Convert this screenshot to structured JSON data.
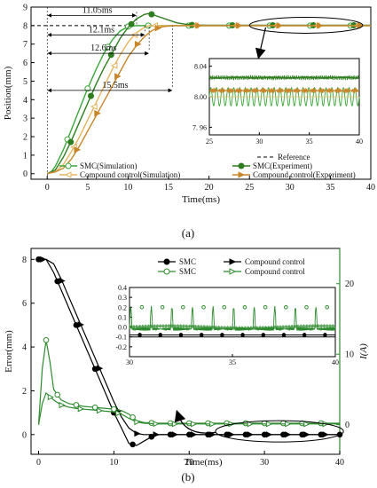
{
  "chart_data": [
    {
      "panel": "(a)",
      "type": "line",
      "xlabel": "Time(ms)",
      "ylabel": "Position(mm)",
      "xlim": [
        -2,
        40
      ],
      "ylim": [
        -0.3,
        9
      ],
      "xticks": [
        0,
        5,
        10,
        15,
        20,
        25,
        30,
        35,
        40
      ],
      "yticks": [
        0,
        1,
        2,
        3,
        4,
        5,
        6,
        7,
        8,
        9
      ],
      "grid": false,
      "legend_position": "bottom-right",
      "colors": {
        "reference": "#000000",
        "smc_sim": "#3aa63a",
        "smc_exp": "#2e7d1f",
        "comp_sim": "#e6b45e",
        "comp_exp": "#c8862a"
      },
      "reference": {
        "name": "Reference",
        "x": [
          -2,
          40
        ],
        "y": [
          8,
          8
        ]
      },
      "series": [
        {
          "name": "SMC(Simulation)",
          "key": "smc_sim",
          "marker": "open-circle",
          "x": [
            0,
            0.5,
            1,
            2,
            3,
            4,
            5,
            6,
            7,
            8,
            9,
            10,
            11,
            11.05,
            13,
            16,
            20,
            25,
            30,
            35,
            40
          ],
          "y": [
            0,
            0.1,
            0.4,
            1.3,
            2.4,
            3.5,
            4.6,
            5.6,
            6.5,
            7.2,
            7.7,
            7.95,
            8.0,
            8.0,
            8.0,
            8.0,
            8.0,
            8.0,
            8.0,
            8.0,
            8.0
          ]
        },
        {
          "name": "SMC(Experiment)",
          "key": "smc_exp",
          "marker": "filled-circle",
          "x": [
            0,
            1,
            2,
            3,
            4,
            5,
            6,
            7,
            8,
            9,
            10,
            11,
            12,
            12.5,
            13,
            14,
            15,
            16,
            17,
            18,
            20,
            25,
            30,
            35,
            40
          ],
          "y": [
            0,
            0.2,
            0.9,
            1.8,
            2.8,
            3.8,
            4.8,
            5.7,
            6.5,
            7.3,
            7.9,
            8.35,
            8.6,
            8.65,
            8.6,
            8.45,
            8.3,
            8.15,
            8.08,
            8.03,
            8.02,
            8.02,
            8.02,
            8.02,
            8.02
          ]
        },
        {
          "name": "Compound control(Simulation)",
          "key": "comp_sim",
          "marker": "open-triangle-left",
          "x": [
            0,
            1,
            2,
            3,
            4,
            5,
            6,
            7,
            8,
            9,
            10,
            11,
            12,
            12.6,
            14,
            16,
            20,
            25,
            30,
            35,
            40
          ],
          "y": [
            0,
            0.1,
            0.5,
            1.2,
            2.0,
            2.9,
            3.8,
            4.7,
            5.6,
            6.4,
            7.1,
            7.6,
            7.9,
            8.0,
            8.0,
            8.0,
            8.0,
            8.0,
            8.0,
            8.0,
            8.0
          ]
        },
        {
          "name": "Compound control(Experiment)",
          "key": "comp_exp",
          "marker": "filled-triangle-right",
          "x": [
            0,
            1,
            2,
            3,
            4,
            5,
            6,
            7,
            8,
            9,
            10,
            11,
            12,
            13,
            14,
            15,
            15.5,
            17,
            20,
            25,
            30,
            35,
            40
          ],
          "y": [
            0,
            0.1,
            0.3,
            0.8,
            1.5,
            2.3,
            3.1,
            3.9,
            4.7,
            5.5,
            6.3,
            6.9,
            7.4,
            7.75,
            7.92,
            7.98,
            8.0,
            8.0,
            8.0,
            8.0,
            8.0,
            8.0,
            8.0
          ]
        }
      ],
      "annotations": [
        {
          "text": "11.05ms",
          "x_end": 11.05,
          "y": 8.55
        },
        {
          "text": "12.1ms",
          "x_end": 12.1,
          "y": 7.5
        },
        {
          "text": "12.6ms",
          "x_end": 12.6,
          "y": 6.5
        },
        {
          "text": "15.5ms",
          "x_end": 15.5,
          "y": 4.5
        }
      ],
      "inset": {
        "xlim": [
          25,
          40
        ],
        "ylim": [
          7.95,
          8.05
        ],
        "xticks": [
          25,
          30,
          35,
          40
        ],
        "yticks": [
          7.96,
          8.0,
          8.04
        ],
        "ytick_labels": [
          "7. 96",
          "8.00",
          "8.04"
        ],
        "smc_exp_level": 8.025,
        "comp_exp_level": 8.008,
        "smc_sim_amplitude": 0.012,
        "smc_sim_cycles": 26
      }
    },
    {
      "panel": "(b)",
      "type": "line",
      "xlabel": "Time(ms)",
      "ylabel": "Error(mm)",
      "y2label": "I(A)",
      "xlim": [
        -1,
        40
      ],
      "ylim": [
        -0.9,
        8.5
      ],
      "y2lim": [
        -4.2,
        25
      ],
      "xticks": [
        0,
        10,
        20,
        30,
        40
      ],
      "yticks": [
        0,
        2,
        4,
        6,
        8
      ],
      "y2ticks": [
        0,
        10,
        20
      ],
      "grid": false,
      "legend_position": "top-right",
      "colors": {
        "error": "#000000",
        "current": "#2e8b2e"
      },
      "series": [
        {
          "name": "SMC",
          "key": "err_smc",
          "axis": "left",
          "marker": "filled-circle",
          "x": [
            0,
            1,
            2,
            3,
            4,
            5,
            6,
            7,
            8,
            9,
            10,
            11,
            12,
            13,
            14,
            15,
            16,
            18,
            20,
            25,
            30,
            35,
            40
          ],
          "y": [
            8.0,
            8.0,
            7.4,
            6.6,
            5.8,
            5.0,
            4.2,
            3.4,
            2.6,
            1.8,
            1.0,
            0.3,
            -0.4,
            -0.5,
            -0.3,
            -0.1,
            0.0,
            0.0,
            0.0,
            0.0,
            0.0,
            0.0,
            0.0
          ]
        },
        {
          "name": "Compound control",
          "key": "err_comp",
          "axis": "left",
          "marker": "filled-triangle-right",
          "x": [
            0,
            1,
            2,
            3,
            4,
            5,
            6,
            7,
            8,
            9,
            10,
            11,
            12,
            13,
            14,
            15,
            16,
            18,
            20,
            25,
            30,
            35,
            40
          ],
          "y": [
            8.0,
            8.0,
            7.8,
            7.1,
            6.3,
            5.5,
            4.7,
            3.9,
            3.1,
            2.3,
            1.5,
            0.8,
            0.3,
            0.05,
            0.0,
            0.0,
            0.0,
            0.0,
            0.0,
            0.0,
            0.0,
            0.0,
            0.0
          ]
        },
        {
          "name": "SMC",
          "key": "cur_smc",
          "axis": "right",
          "marker": "open-circle",
          "x": [
            0,
            0.5,
            1,
            1.5,
            2,
            3,
            4,
            5,
            6,
            7,
            8,
            9,
            10,
            11,
            12,
            13,
            14,
            16,
            20,
            25,
            30,
            35,
            40
          ],
          "y": [
            0,
            8,
            12,
            9,
            5,
            3.5,
            3.0,
            2.8,
            2.6,
            2.5,
            2.4,
            2.3,
            2.2,
            2.0,
            1.5,
            0.6,
            0.3,
            0.2,
            0.2,
            0.2,
            0.2,
            0.2,
            0.2
          ]
        },
        {
          "name": "Compound control",
          "key": "cur_comp",
          "axis": "right",
          "marker": "open-triangle-right",
          "x": [
            0,
            0.5,
            1,
            1.5,
            2,
            3,
            4,
            5,
            6,
            7,
            8,
            9,
            10,
            11,
            12,
            13,
            14,
            16,
            20,
            25,
            30,
            35,
            40
          ],
          "y": [
            0,
            3,
            4.5,
            4.0,
            3.5,
            2.8,
            2.5,
            2.3,
            2.2,
            2.1,
            2.0,
            1.9,
            1.8,
            1.5,
            0.9,
            0.4,
            0.2,
            0.1,
            0.1,
            0.1,
            0.1,
            0.1,
            0.1
          ]
        }
      ],
      "inset": {
        "xlim": [
          30,
          40
        ],
        "ylim": [
          -0.3,
          0.4
        ],
        "xticks": [
          30,
          35,
          40
        ],
        "yticks": [
          -0.2,
          -0.1,
          0.0,
          0.1,
          0.2,
          0.3,
          0.4
        ],
        "ytick_labels": [
          "-0.2",
          "-0.1",
          "0.0",
          "0.1",
          "0.2",
          "0.3",
          "0.4"
        ],
        "spike_period": 1.0,
        "spike_height": 0.22,
        "baseline": -0.02
      }
    }
  ],
  "captions": {
    "a": "(a)",
    "b": "(b)"
  }
}
